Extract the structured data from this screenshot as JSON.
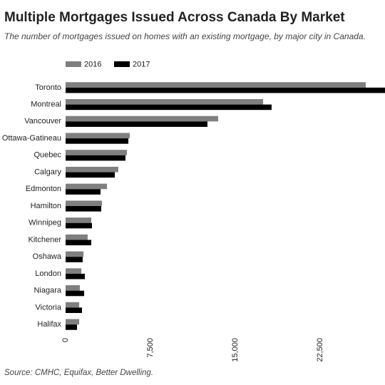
{
  "chart_data": {
    "type": "hbar",
    "title": "Multiple Mortgages Issued Across Canada By Market",
    "subtitle": "The number of mortgages issued on homes with an existing mortgage, by major city in Canada.",
    "source": "Source: CMHC, Equifax, Better Dwelling.",
    "categories": [
      "Toronto",
      "Montreal",
      "Vancouver",
      "Ottawa-Gatineau",
      "Quebec",
      "Calgary",
      "Edmonton",
      "Hamilton",
      "Winnipeg",
      "Kitchener",
      "Oshawa",
      "London",
      "Niagara",
      "Victoria",
      "Halifax"
    ],
    "series": [
      {
        "name": "2016",
        "color": "#7f7f7f",
        "values": [
          26530,
          17460,
          13490,
          5670,
          5420,
          4660,
          3660,
          3210,
          2270,
          1950,
          1580,
          1390,
          1260,
          1200,
          1200
        ]
      },
      {
        "name": "2017",
        "color": "#000000",
        "values": [
          28300,
          18210,
          12540,
          5550,
          5290,
          4350,
          3090,
          3150,
          2330,
          2270,
          1510,
          1700,
          1640,
          1450,
          1010
        ]
      }
    ],
    "xlim": [
      0,
      28235
    ],
    "xticks": [
      0,
      {
        "value": 7500,
        "label": "7,500"
      },
      {
        "value": 15000,
        "label": "15,000"
      },
      {
        "value": 22500,
        "label": "22,500"
      }
    ],
    "grid": false,
    "legend": "top-left"
  }
}
